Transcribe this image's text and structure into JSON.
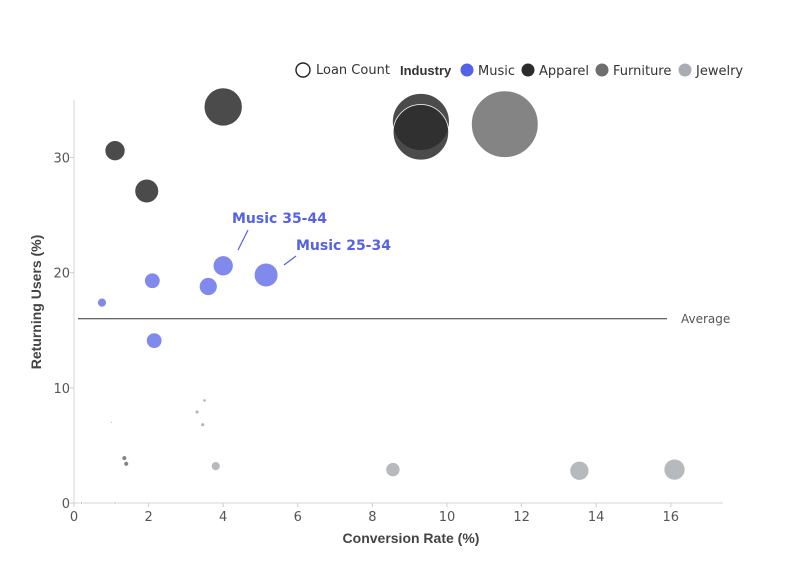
{
  "chart_data": {
    "type": "scatter",
    "xlabel": "Conversion Rate (%)",
    "ylabel": "Returning Users (%)",
    "xlim": [
      0,
      17.4
    ],
    "ylim": [
      0,
      35
    ],
    "x_ticks": [
      "0",
      "2",
      "4",
      "6",
      "8",
      "10",
      "12",
      "14",
      "16"
    ],
    "y_ticks": [
      "0",
      "10",
      "20",
      "30"
    ],
    "size_legend_label": "Loan Count",
    "color_legend_title": "Industry",
    "series": [
      {
        "name": "Music",
        "color": "#5561e6",
        "points": [
          {
            "x": 0.75,
            "y": 17.4,
            "loan_count": 1
          },
          {
            "x": 2.1,
            "y": 19.3,
            "loan_count": 3
          },
          {
            "x": 2.15,
            "y": 14.1,
            "loan_count": 3
          },
          {
            "x": 3.6,
            "y": 18.8,
            "loan_count": 4
          },
          {
            "x": 4.0,
            "y": 20.6,
            "loan_count": 5
          },
          {
            "x": 5.15,
            "y": 19.8,
            "loan_count": 7
          }
        ]
      },
      {
        "name": "Apparel",
        "color": "#2b2b2b",
        "points": [
          {
            "x": 1.1,
            "y": 30.6,
            "loan_count": 5
          },
          {
            "x": 1.95,
            "y": 27.1,
            "loan_count": 7
          },
          {
            "x": 4.0,
            "y": 34.4,
            "loan_count": 18
          },
          {
            "x": 9.3,
            "y": 33.1,
            "loan_count": 40
          },
          {
            "x": 9.3,
            "y": 32.2,
            "loan_count": 38
          }
        ]
      },
      {
        "name": "Furniture",
        "color": "#6e6e6e",
        "points": [
          {
            "x": 11.55,
            "y": 32.9,
            "loan_count": 55
          },
          {
            "x": 1.35,
            "y": 3.9,
            "loan_count": 0.3
          },
          {
            "x": 1.4,
            "y": 3.4,
            "loan_count": 0.3
          },
          {
            "x": 0.2,
            "y": 0.0,
            "loan_count": 0.05
          },
          {
            "x": 1.1,
            "y": 0.0,
            "loan_count": 0.05
          }
        ]
      },
      {
        "name": "Jewelry",
        "color": "#a9adb3",
        "points": [
          {
            "x": 3.8,
            "y": 3.2,
            "loan_count": 1
          },
          {
            "x": 8.55,
            "y": 2.9,
            "loan_count": 2.5
          },
          {
            "x": 13.55,
            "y": 2.8,
            "loan_count": 4.5
          },
          {
            "x": 16.1,
            "y": 2.9,
            "loan_count": 5.5
          },
          {
            "x": 3.3,
            "y": 7.9,
            "loan_count": 0.2
          },
          {
            "x": 3.5,
            "y": 8.9,
            "loan_count": 0.15
          },
          {
            "x": 3.45,
            "y": 6.8,
            "loan_count": 0.2
          },
          {
            "x": 1.0,
            "y": 7.0,
            "loan_count": 0.05
          }
        ]
      }
    ],
    "reference_line": {
      "label": "Average",
      "y": 16.0
    },
    "annotations": [
      {
        "text": "Music 35-44",
        "x": 4.0,
        "y": 20.6
      },
      {
        "text": "Music 25-34",
        "x": 5.15,
        "y": 19.8
      }
    ],
    "grid": false,
    "legend_position": "top-right"
  }
}
